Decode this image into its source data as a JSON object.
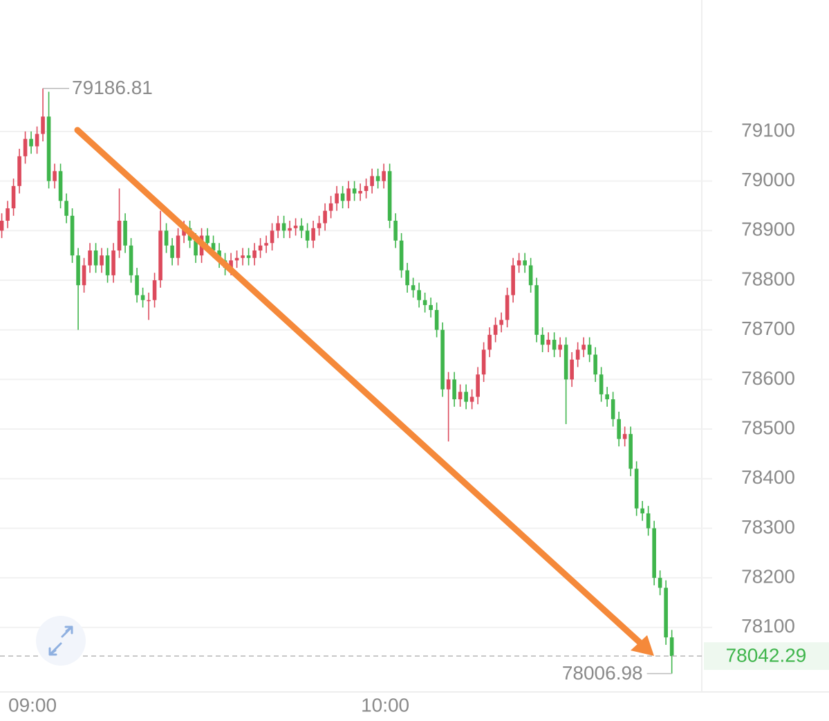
{
  "chart_data": {
    "type": "candlestick",
    "x": [
      -5,
      -4,
      -3,
      -2,
      -1,
      0,
      1,
      2,
      3,
      4,
      5,
      6,
      7,
      8,
      9,
      10,
      11,
      12,
      13,
      14,
      15,
      16,
      17,
      18,
      19,
      20,
      21,
      22,
      23,
      24,
      25,
      26,
      27,
      28,
      29,
      30,
      31,
      32,
      33,
      34,
      35,
      36,
      37,
      38,
      39,
      40,
      41,
      42,
      43,
      44,
      45,
      46,
      47,
      48,
      49,
      50,
      51,
      52,
      53,
      54,
      55,
      56,
      57,
      58,
      59,
      60,
      61,
      62,
      63,
      64,
      65,
      66,
      67,
      68,
      69,
      70,
      71,
      72,
      73,
      74,
      75,
      76,
      77,
      78,
      79,
      80,
      81,
      82,
      83,
      84,
      85,
      86,
      87,
      88,
      89,
      90,
      91,
      92,
      93,
      94,
      95,
      96,
      97,
      98,
      99,
      100,
      101,
      102,
      103,
      104,
      105,
      106,
      107,
      108,
      109
    ],
    "open": [
      78900,
      78920,
      78945,
      78990,
      79050,
      79085,
      79070,
      79095,
      79130,
      79000,
      79020,
      78960,
      78930,
      78850,
      78790,
      78830,
      78860,
      78830,
      78850,
      78810,
      78860,
      78920,
      78870,
      78810,
      78770,
      78760,
      78760,
      78800,
      78900,
      78870,
      78845,
      78890,
      78905,
      78880,
      78850,
      78890,
      78875,
      78860,
      78840,
      78825,
      78840,
      78845,
      78850,
      78845,
      78860,
      78870,
      78875,
      78900,
      78915,
      78900,
      78905,
      78910,
      78900,
      78880,
      78905,
      78915,
      78940,
      78955,
      78975,
      78960,
      78985,
      78975,
      78980,
      78990,
      79010,
      79000,
      79020,
      78920,
      78880,
      78820,
      78790,
      78780,
      78760,
      78750,
      78740,
      78700,
      78580,
      78600,
      78560,
      78575,
      78555,
      78565,
      78610,
      78660,
      78690,
      78710,
      78720,
      78770,
      78830,
      78840,
      78830,
      78790,
      78690,
      78670,
      78680,
      78660,
      78670,
      78600,
      78640,
      78660,
      78670,
      78650,
      78610,
      78570,
      78560,
      78520,
      78480,
      78490,
      78420,
      78340,
      78330,
      78300,
      78200,
      78180,
      78080
    ],
    "high": [
      78935,
      78960,
      79005,
      79065,
      79100,
      79100,
      79110,
      79186.81,
      79180,
      79035,
      79035,
      78975,
      78945,
      78865,
      78845,
      78875,
      78875,
      78865,
      78865,
      78875,
      78985,
      78935,
      78885,
      78825,
      78785,
      78775,
      78815,
      78940,
      78915,
      78885,
      78905,
      78920,
      78920,
      78895,
      78905,
      78905,
      78890,
      78875,
      78855,
      78855,
      78860,
      78865,
      78865,
      78875,
      78885,
      78890,
      78915,
      78930,
      78930,
      78920,
      78925,
      78925,
      78915,
      78920,
      78930,
      78955,
      78970,
      78990,
      78990,
      79000,
      79000,
      78995,
      79005,
      79025,
      79025,
      79035,
      79035,
      78935,
      78895,
      78835,
      78805,
      78795,
      78775,
      78765,
      78755,
      78715,
      78615,
      78615,
      78590,
      78590,
      78580,
      78625,
      78675,
      78705,
      78725,
      78735,
      78785,
      78845,
      78855,
      78855,
      78845,
      78805,
      78705,
      78695,
      78695,
      78685,
      78685,
      78655,
      78675,
      78685,
      78685,
      78665,
      78625,
      78585,
      78575,
      78535,
      78505,
      78505,
      78435,
      78355,
      78345,
      78315,
      78215,
      78195,
      78095
    ],
    "low": [
      78885,
      78905,
      78930,
      78975,
      79035,
      79055,
      79055,
      79080,
      78985,
      78985,
      78945,
      78915,
      78835,
      78700,
      78775,
      78815,
      78815,
      78815,
      78795,
      78795,
      78845,
      78855,
      78795,
      78755,
      78745,
      78720,
      78745,
      78785,
      78855,
      78830,
      78830,
      78875,
      78865,
      78835,
      78835,
      78860,
      78845,
      78825,
      78810,
      78810,
      78825,
      78830,
      78830,
      78830,
      78845,
      78855,
      78860,
      78885,
      78885,
      78885,
      78890,
      78885,
      78865,
      78865,
      78890,
      78900,
      78925,
      78940,
      78945,
      78945,
      78960,
      78960,
      78965,
      78975,
      78985,
      78985,
      78905,
      78865,
      78805,
      78775,
      78765,
      78745,
      78735,
      78725,
      78685,
      78565,
      78475,
      78545,
      78545,
      78540,
      78540,
      78550,
      78595,
      78645,
      78675,
      78695,
      78705,
      78755,
      78815,
      78815,
      78775,
      78675,
      78655,
      78655,
      78645,
      78645,
      78510,
      78585,
      78625,
      78645,
      78635,
      78595,
      78555,
      78545,
      78505,
      78465,
      78465,
      78405,
      78325,
      78315,
      78285,
      78185,
      78165,
      78065,
      78006.98
    ],
    "close": [
      78920,
      78945,
      78990,
      79050,
      79085,
      79070,
      79095,
      79130,
      79000,
      79020,
      78960,
      78930,
      78850,
      78790,
      78830,
      78860,
      78830,
      78850,
      78810,
      78860,
      78920,
      78870,
      78810,
      78770,
      78760,
      78760,
      78800,
      78900,
      78870,
      78845,
      78890,
      78905,
      78880,
      78850,
      78890,
      78875,
      78860,
      78840,
      78825,
      78840,
      78845,
      78850,
      78845,
      78860,
      78870,
      78875,
      78900,
      78915,
      78900,
      78905,
      78910,
      78900,
      78880,
      78905,
      78915,
      78940,
      78955,
      78975,
      78960,
      78985,
      78975,
      78980,
      78990,
      79010,
      79000,
      79020,
      78920,
      78880,
      78820,
      78790,
      78780,
      78760,
      78750,
      78740,
      78700,
      78580,
      78600,
      78560,
      78575,
      78555,
      78565,
      78610,
      78660,
      78690,
      78710,
      78720,
      78770,
      78830,
      78840,
      78830,
      78790,
      78690,
      78670,
      78680,
      78660,
      78670,
      78600,
      78640,
      78660,
      78670,
      78650,
      78610,
      78570,
      78560,
      78520,
      78480,
      78490,
      78420,
      78340,
      78330,
      78300,
      78200,
      78180,
      78080,
      78042.29
    ],
    "up_color": "#dc4a5c",
    "down_color": "#3fb54c",
    "xlim": [
      -5.3,
      114.1
    ],
    "xticks": [
      {
        "value": 0,
        "label": "09:00"
      },
      {
        "value": 60,
        "label": "10:00"
      }
    ],
    "ylim": [
      77970,
      79365
    ],
    "yticks": [
      78100,
      78200,
      78300,
      78400,
      78500,
      78600,
      78700,
      78800,
      78900,
      79000,
      79100
    ],
    "grid": true
  }
}
